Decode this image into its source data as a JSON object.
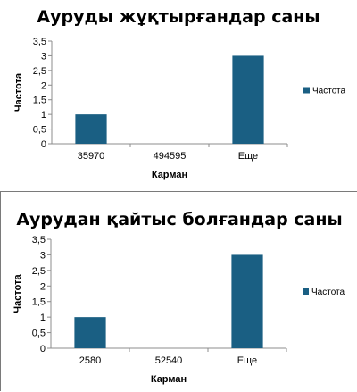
{
  "chart_data": [
    {
      "type": "bar",
      "title": "Ауруды жұқтырғандар саны",
      "xlabel": "Карман",
      "ylabel": "Частота",
      "categories": [
        "35970",
        "494595",
        "Еще"
      ],
      "series": [
        {
          "name": "Частота",
          "values": [
            1,
            0,
            3
          ],
          "color": "#1a5f83"
        }
      ],
      "ylim": [
        0,
        3.5
      ],
      "yticks": [
        "0",
        "0,5",
        "1",
        "1,5",
        "2",
        "2,5",
        "3",
        "3,5"
      ],
      "grid": false,
      "legend": "right"
    },
    {
      "type": "bar",
      "title": "Аурудан қайтыс болғандар саны",
      "xlabel": "Карман",
      "ylabel": "Частота",
      "categories": [
        "2580",
        "52540",
        "Еще"
      ],
      "series": [
        {
          "name": "Частота",
          "values": [
            1,
            0,
            3
          ],
          "color": "#1a5f83"
        }
      ],
      "ylim": [
        0,
        3.5
      ],
      "yticks": [
        "0",
        "0,5",
        "1",
        "1,5",
        "2",
        "2,5",
        "3",
        "3,5"
      ],
      "grid": false,
      "legend": "right"
    }
  ]
}
